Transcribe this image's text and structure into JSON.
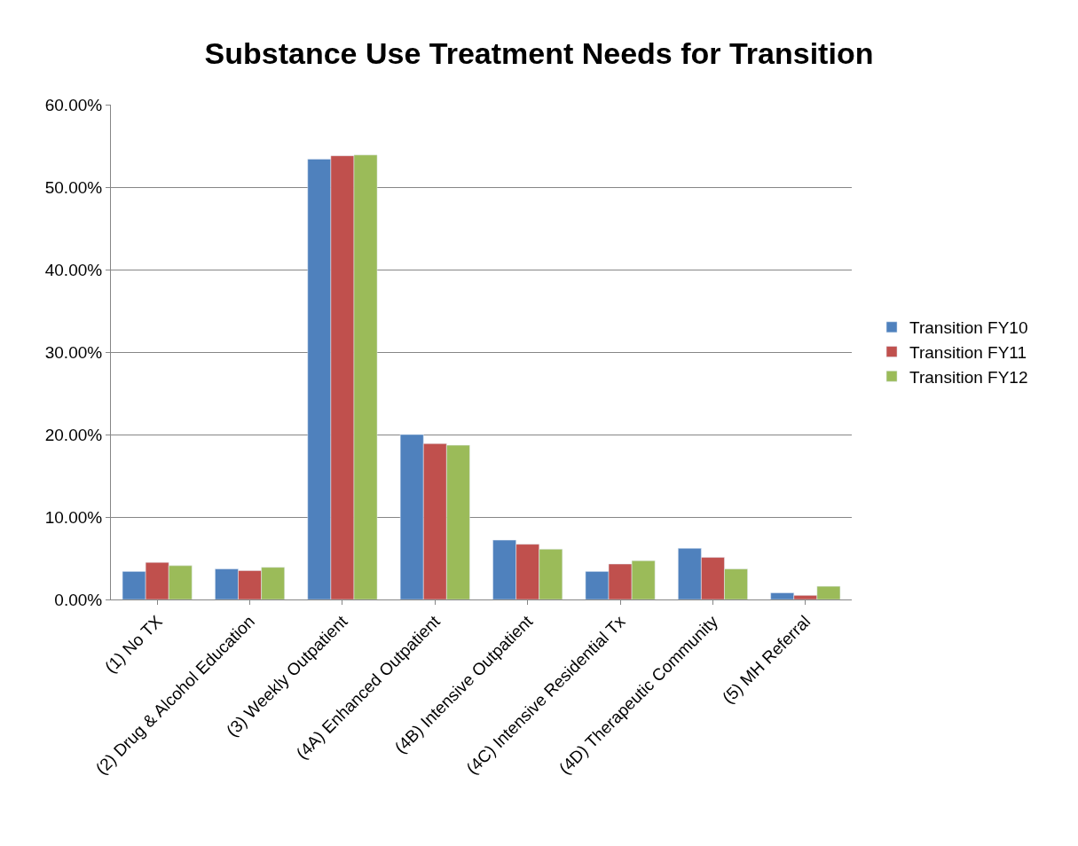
{
  "chart_data": {
    "type": "bar",
    "title": "Substance Use Treatment Needs for Transition",
    "categories": [
      "(1) No TX",
      "(2) Drug & Alcohol Education",
      "(3) Weekly Outpatient",
      "(4A) Enhanced Outpatient",
      "(4B) Intensive Outpatient",
      "(4C) Intensive Residential Tx",
      "(4D) Therapeutic Community",
      "(5) MH Referral"
    ],
    "series": [
      {
        "name": "Transition FY10",
        "color": "#4f81bd",
        "values": [
          3.4,
          3.7,
          53.4,
          20.0,
          7.2,
          3.4,
          6.2,
          0.8
        ]
      },
      {
        "name": "Transition FY11",
        "color": "#c0504d",
        "values": [
          4.5,
          3.5,
          53.8,
          18.9,
          6.7,
          4.3,
          5.1,
          0.5
        ]
      },
      {
        "name": "Transition FY12",
        "color": "#9bbb59",
        "values": [
          4.1,
          3.9,
          53.9,
          18.7,
          6.1,
          4.7,
          3.7,
          1.6
        ]
      }
    ],
    "ylim": [
      0,
      60
    ],
    "yticks": [
      {
        "value": 0,
        "label": "0.00%"
      },
      {
        "value": 10,
        "label": "10.00%"
      },
      {
        "value": 20,
        "label": "20.00%"
      },
      {
        "value": 30,
        "label": "30.00%"
      },
      {
        "value": 40,
        "label": "40.00%"
      },
      {
        "value": 50,
        "label": "50.00%"
      },
      {
        "value": 60,
        "label": "60.00%"
      }
    ],
    "grid": "y",
    "legend": "right"
  }
}
